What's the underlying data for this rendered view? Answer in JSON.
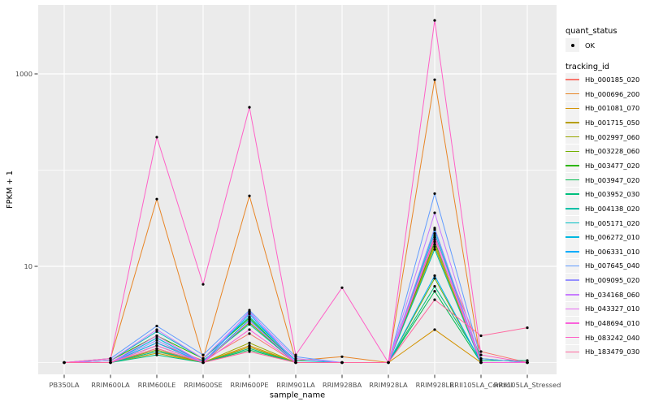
{
  "legend": {
    "quant_status_title": "quant_status",
    "ok_label": "OK",
    "tracking_id_title": "tracking_id"
  },
  "chart_data": {
    "type": "line",
    "title": "",
    "xlabel": "sample_name",
    "ylabel": "FPKM + 1",
    "y_scale": "log10",
    "y_tick_labels": [
      "10",
      "1000"
    ],
    "y_tick_values": [
      10,
      1000
    ],
    "y_minor_gridline_values": [
      1,
      100
    ],
    "ylim": [
      0.74,
      5200
    ],
    "grid": "on",
    "legend_position": "right",
    "panel_bg": "#EBEBEB",
    "grid_color": "#FFFFFF",
    "point_color": "#000000",
    "axis_text_color": "#4D4D4D",
    "quant_status_value": "OK",
    "categories": [
      "PB350LA",
      "RRIM600LA",
      "RRIM600LE",
      "RRIM600SE",
      "RRIM600PE",
      "RRIM901LA",
      "RRIM928BA",
      "RRIM928LA",
      "RRIM928LE",
      "RRII105LA_Control",
      "RRII105LA_Stressed"
    ],
    "series": [
      {
        "name": "Hb_000185_020",
        "color": "#F8766D",
        "values": [
          1,
          1,
          1.6,
          1.05,
          2.0,
          1,
          1,
          1,
          20,
          1.3,
          1
        ]
      },
      {
        "name": "Hb_000696_200",
        "color": "#E88526",
        "values": [
          1,
          1.1,
          50,
          1.1,
          54,
          1.05,
          1.15,
          1,
          870,
          1,
          1
        ]
      },
      {
        "name": "Hb_001081_070",
        "color": "#D39200",
        "values": [
          1,
          1,
          1.3,
          1,
          1.5,
          1,
          1,
          1,
          2.2,
          1,
          1
        ]
      },
      {
        "name": "Hb_001715_050",
        "color": "#B79F00",
        "values": [
          1,
          1,
          1.25,
          1,
          1.45,
          1,
          1,
          1,
          16,
          1,
          1
        ]
      },
      {
        "name": "Hb_002997_060",
        "color": "#99A800",
        "values": [
          1,
          1,
          1.4,
          1,
          1.6,
          1,
          1,
          1,
          17,
          1,
          1
        ]
      },
      {
        "name": "Hb_003228_060",
        "color": "#72B000",
        "values": [
          1,
          1,
          1.35,
          1,
          2.6,
          1,
          1,
          1,
          7.5,
          1,
          1
        ]
      },
      {
        "name": "Hb_003477_020",
        "color": "#2CB600",
        "values": [
          1,
          1.05,
          1.9,
          1.1,
          2.9,
          1,
          1,
          1,
          18,
          1.1,
          1
        ]
      },
      {
        "name": "Hb_003947_020",
        "color": "#00BB4E",
        "values": [
          1,
          1,
          1.5,
          1,
          1.35,
          1,
          1,
          1,
          5.5,
          1,
          1
        ]
      },
      {
        "name": "Hb_003952_030",
        "color": "#00BF7D",
        "values": [
          1,
          1,
          1.2,
          1,
          1.4,
          1,
          1,
          1,
          6.2,
          1.05,
          1.05
        ]
      },
      {
        "name": "Hb_004138_020",
        "color": "#00C0A7",
        "values": [
          1,
          1,
          1.3,
          1.05,
          2.5,
          1,
          1,
          1,
          15,
          1,
          1
        ]
      },
      {
        "name": "Hb_005171_020",
        "color": "#00BFC4",
        "values": [
          1,
          1.05,
          2.1,
          1.1,
          3.0,
          1.05,
          1,
          1,
          22,
          1,
          1
        ]
      },
      {
        "name": "Hb_006272_010",
        "color": "#00B8E0",
        "values": [
          1,
          1,
          1.8,
          1,
          2.8,
          1,
          1,
          1,
          24,
          1,
          1
        ]
      },
      {
        "name": "Hb_006331_010",
        "color": "#00ACFC",
        "values": [
          1,
          1,
          1.6,
          1,
          3.2,
          1,
          1,
          1,
          8,
          1,
          1
        ]
      },
      {
        "name": "Hb_007645_040",
        "color": "#619CFF",
        "values": [
          1,
          1.1,
          2.4,
          1.2,
          3.5,
          1.15,
          1,
          1,
          57,
          1.1,
          1
        ]
      },
      {
        "name": "Hb_009095_020",
        "color": "#9590FF",
        "values": [
          1,
          1,
          1.7,
          1,
          3.4,
          1,
          1,
          1,
          25,
          1,
          1
        ]
      },
      {
        "name": "Hb_034168_060",
        "color": "#C77CFF",
        "values": [
          1,
          1.05,
          2.2,
          1.1,
          3.3,
          1.1,
          1,
          1,
          36,
          1,
          1
        ]
      },
      {
        "name": "Hb_043327_010",
        "color": "#E76BF3",
        "values": [
          1,
          1,
          1.9,
          1,
          2.7,
          1,
          1,
          1,
          21,
          1,
          1
        ]
      },
      {
        "name": "Hb_048694_010",
        "color": "#FA62DB",
        "values": [
          1,
          1,
          1.5,
          1,
          2.2,
          1,
          1,
          1,
          19,
          1,
          1
        ]
      },
      {
        "name": "Hb_083242_040",
        "color": "#FF61C7",
        "values": [
          1,
          1.1,
          220,
          6.5,
          450,
          1.2,
          6,
          1,
          3600,
          1.2,
          1
        ]
      },
      {
        "name": "Hb_183479_030",
        "color": "#FF689F",
        "values": [
          1,
          1,
          1.4,
          1,
          1.3,
          1,
          1,
          1,
          4.5,
          1.9,
          2.3
        ]
      }
    ]
  }
}
